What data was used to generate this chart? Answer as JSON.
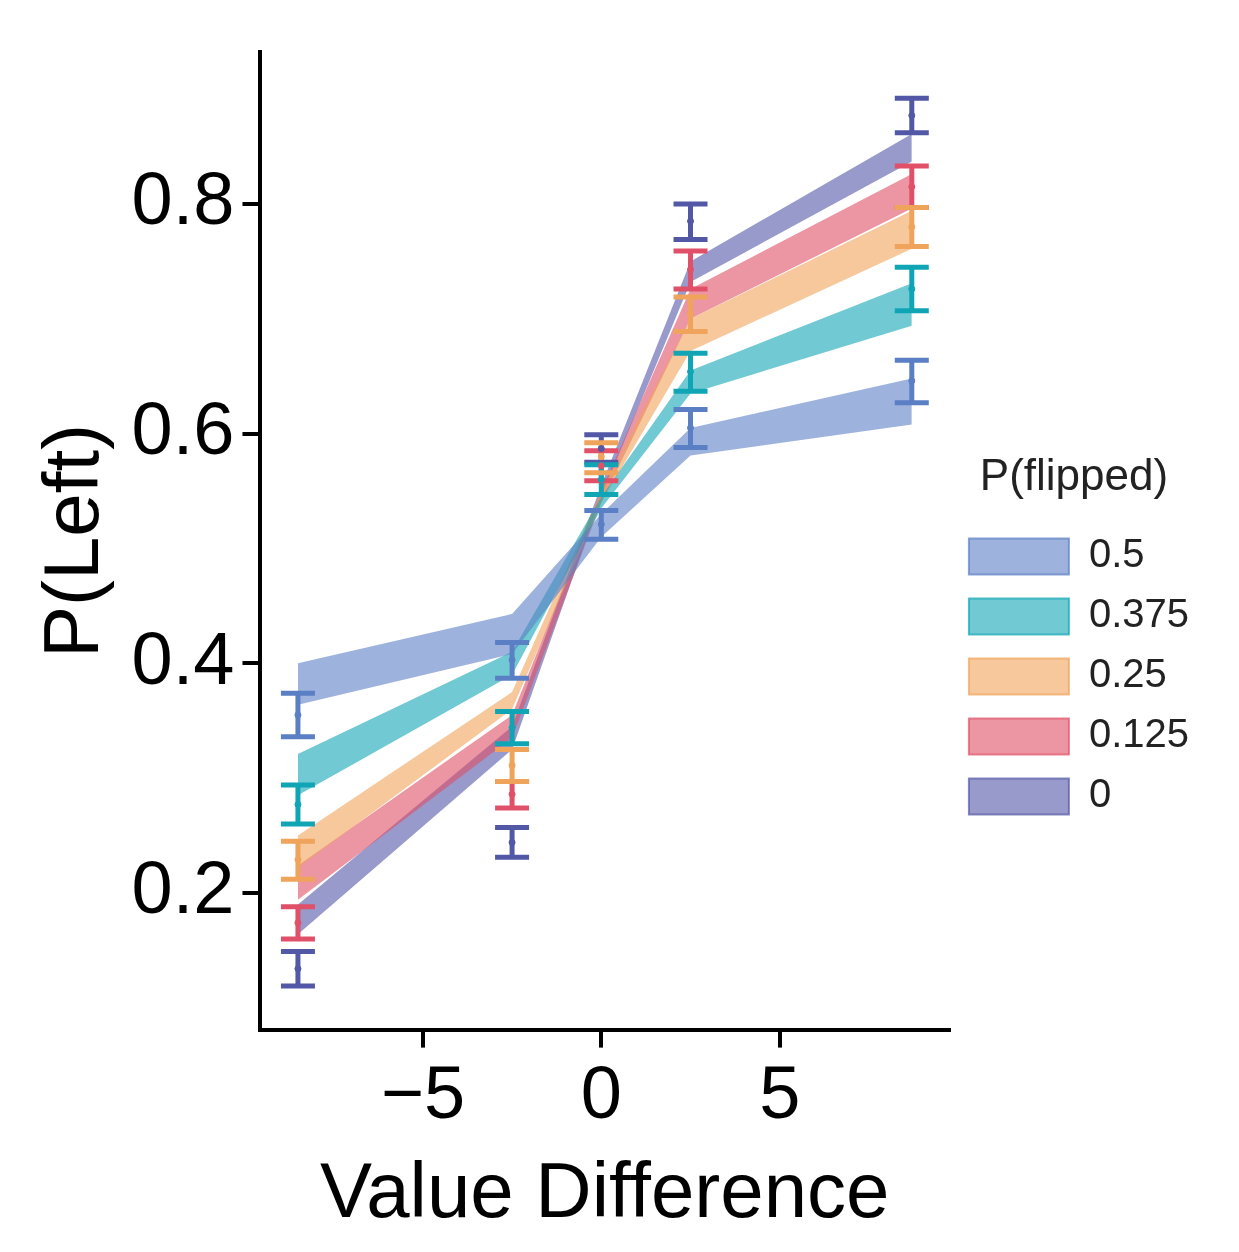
{
  "chart_data": {
    "type": "scatter",
    "xlabel": "Value Difference",
    "ylabel": "P(Left)",
    "legend_title": "P(flipped)",
    "x": [
      -8.5,
      -2.5,
      0,
      2.5,
      8.7
    ],
    "xlim": [
      -9.55,
      9.74
    ],
    "xticks": [
      {
        "value": -5,
        "label": "−5"
      },
      0,
      5
    ],
    "ylim": [
      0.081,
      0.932
    ],
    "yticks": [
      0.2,
      0.4,
      0.6,
      0.8
    ],
    "grid": false,
    "legend": "right",
    "series": [
      {
        "name": "0.5",
        "color": "#5b7fc4",
        "values": [
          0.355,
          0.403,
          0.521,
          0.605,
          0.646
        ],
        "errors": [
          [
            0.336,
            0.374
          ],
          [
            0.387,
            0.418
          ],
          [
            0.508,
            0.533
          ],
          [
            0.588,
            0.621
          ],
          [
            0.627,
            0.664
          ]
        ],
        "lower": [
          0.364,
          0.408,
          0.51,
          0.581,
          0.608
        ],
        "upper": [
          0.4,
          0.443,
          0.53,
          0.605,
          0.648
        ]
      },
      {
        "name": "0.375",
        "color": "#10a5b5",
        "values": [
          0.277,
          0.344,
          0.56,
          0.654,
          0.726
        ],
        "errors": [
          [
            0.26,
            0.294
          ],
          [
            0.33,
            0.358
          ],
          [
            0.547,
            0.573
          ],
          [
            0.637,
            0.67
          ],
          [
            0.707,
            0.745
          ]
        ],
        "lower": [
          0.285,
          0.39,
          0.535,
          0.635,
          0.694
        ],
        "upper": [
          0.321,
          0.41,
          0.545,
          0.655,
          0.731
        ]
      },
      {
        "name": "0.25",
        "color": "#f0a35a",
        "values": [
          0.229,
          0.311,
          0.58,
          0.704,
          0.78
        ],
        "errors": [
          [
            0.212,
            0.245
          ],
          [
            0.297,
            0.325
          ],
          [
            0.566,
            0.592
          ],
          [
            0.689,
            0.719
          ],
          [
            0.763,
            0.797
          ]
        ],
        "lower": [
          0.222,
          0.36,
          0.54,
          0.672,
          0.761
        ],
        "upper": [
          0.25,
          0.375,
          0.55,
          0.7,
          0.794
        ]
      },
      {
        "name": "0.125",
        "color": "#e05068",
        "values": [
          0.174,
          0.286,
          0.572,
          0.743,
          0.815
        ],
        "errors": [
          [
            0.16,
            0.188
          ],
          [
            0.274,
            0.297
          ],
          [
            0.559,
            0.585
          ],
          [
            0.726,
            0.759
          ],
          [
            0.797,
            0.833
          ]
        ],
        "lower": [
          0.194,
          0.335,
          0.54,
          0.7,
          0.796
        ],
        "upper": [
          0.224,
          0.355,
          0.55,
          0.726,
          0.826
        ]
      },
      {
        "name": "0",
        "color": "#5257a6",
        "values": [
          0.134,
          0.244,
          0.587,
          0.785,
          0.877
        ],
        "errors": [
          [
            0.119,
            0.149
          ],
          [
            0.231,
            0.257
          ],
          [
            0.575,
            0.599
          ],
          [
            0.769,
            0.8
          ],
          [
            0.862,
            0.892
          ]
        ],
        "lower": [
          0.164,
          0.325,
          0.545,
          0.732,
          0.837
        ],
        "upper": [
          0.19,
          0.345,
          0.555,
          0.75,
          0.861
        ]
      }
    ]
  }
}
